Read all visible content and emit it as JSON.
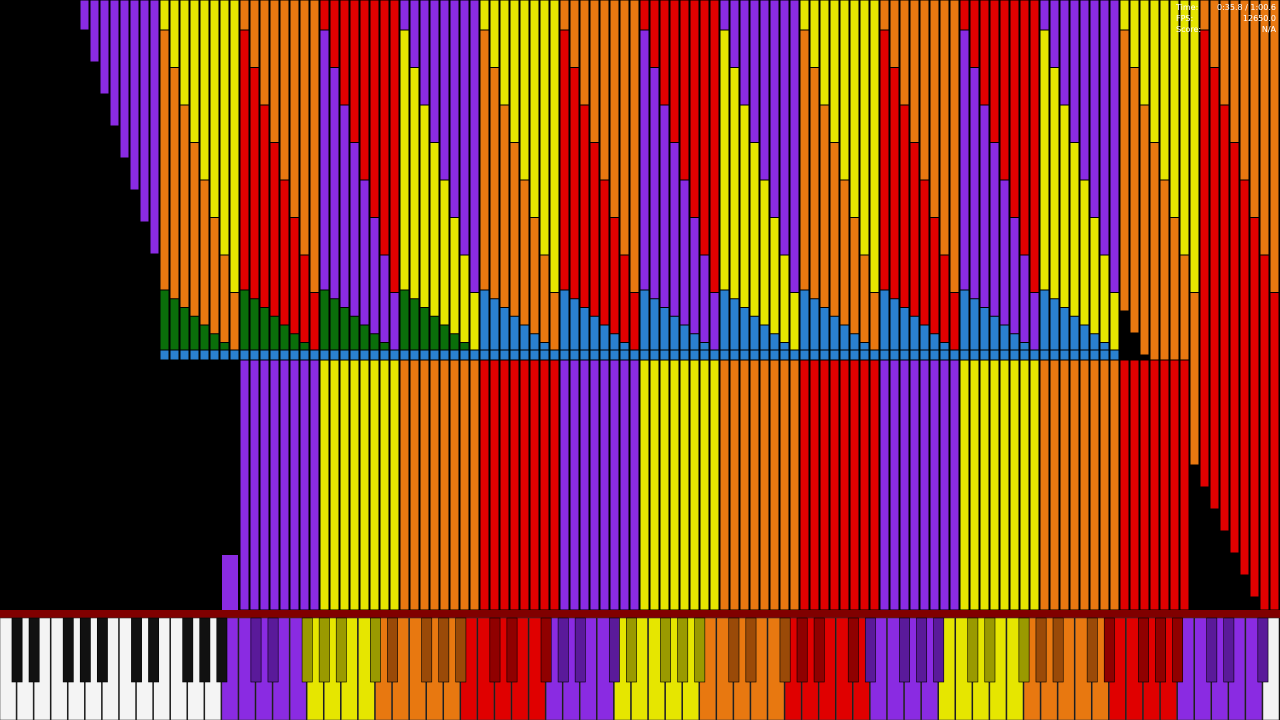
{
  "hud": {
    "time_label": "Time:",
    "time_value": "0:35.8 / 1:00.6",
    "fps_label": "FPS:",
    "fps_value": "12650.0",
    "score_label": "Score:",
    "score_value": "N/A"
  }
}
